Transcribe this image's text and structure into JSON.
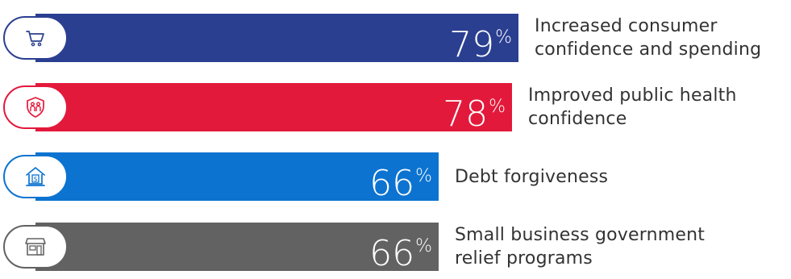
{
  "chart_data": {
    "type": "bar",
    "orientation": "horizontal",
    "categories": [
      "Increased consumer confidence and spending",
      "Improved public health confidence",
      "Debt forgiveness",
      "Small business government relief programs"
    ],
    "values": [
      79,
      78,
      66,
      66
    ],
    "value_suffix": "%",
    "title": "",
    "xlabel": "",
    "ylabel": "",
    "xlim": [
      0,
      100
    ],
    "grid": false,
    "legend": "none",
    "bar_colors": [
      "#2b3f91",
      "#e3193b",
      "#0c73d0",
      "#626262"
    ],
    "icons": [
      "shopping-cart-icon",
      "family-shield-icon",
      "bank-dollar-icon",
      "storefront-icon"
    ]
  }
}
